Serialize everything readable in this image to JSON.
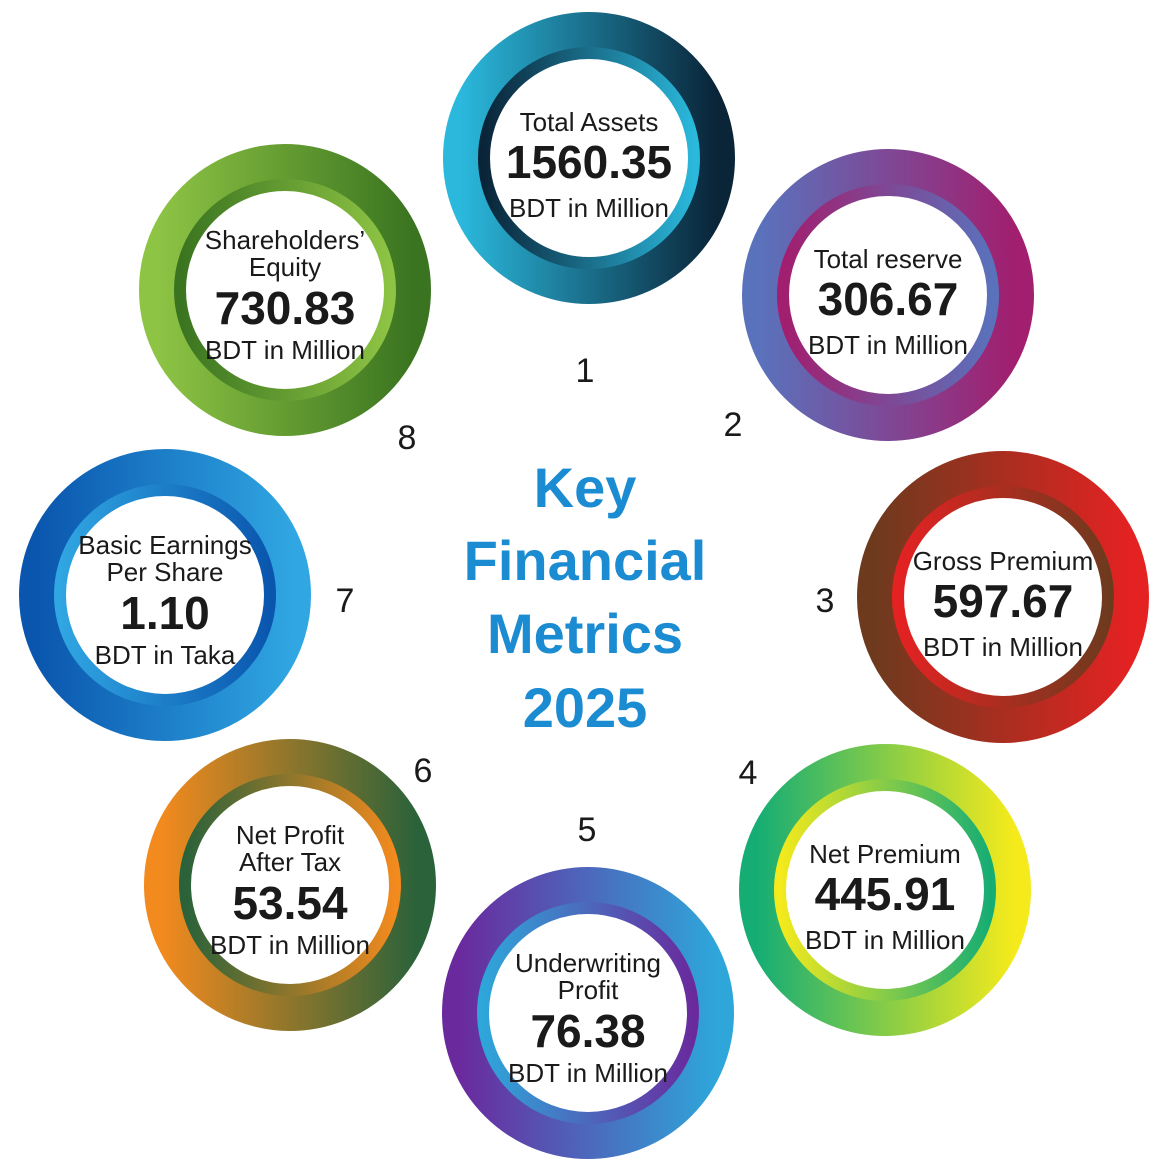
{
  "title": [
    "Key",
    "Financial",
    "Metrics",
    "2025"
  ],
  "metrics": [
    {
      "number": "1",
      "label": [
        "Total Assets"
      ],
      "value": "1560.35",
      "unit": "BDT in Million"
    },
    {
      "number": "2",
      "label": [
        "Total reserve"
      ],
      "value": "306.67",
      "unit": "BDT in Million"
    },
    {
      "number": "3",
      "label": [
        "Gross Premium"
      ],
      "value": "597.67",
      "unit": "BDT in Million"
    },
    {
      "number": "4",
      "label": [
        "Net Premium"
      ],
      "value": "445.91",
      "unit": "BDT in Million"
    },
    {
      "number": "5",
      "label": [
        "Underwriting",
        "Profit"
      ],
      "value": "76.38",
      "unit": "BDT in Million"
    },
    {
      "number": "6",
      "label": [
        "Net Profit",
        "After Tax"
      ],
      "value": "53.54",
      "unit": "BDT in Million"
    },
    {
      "number": "7",
      "label": [
        "Basic Earnings",
        "Per Share"
      ],
      "value": "1.10",
      "unit": "BDT in Taka"
    },
    {
      "number": "8",
      "label": [
        "Shareholders’",
        "Equity"
      ],
      "value": "730.83",
      "unit": "BDT in Million"
    }
  ]
}
